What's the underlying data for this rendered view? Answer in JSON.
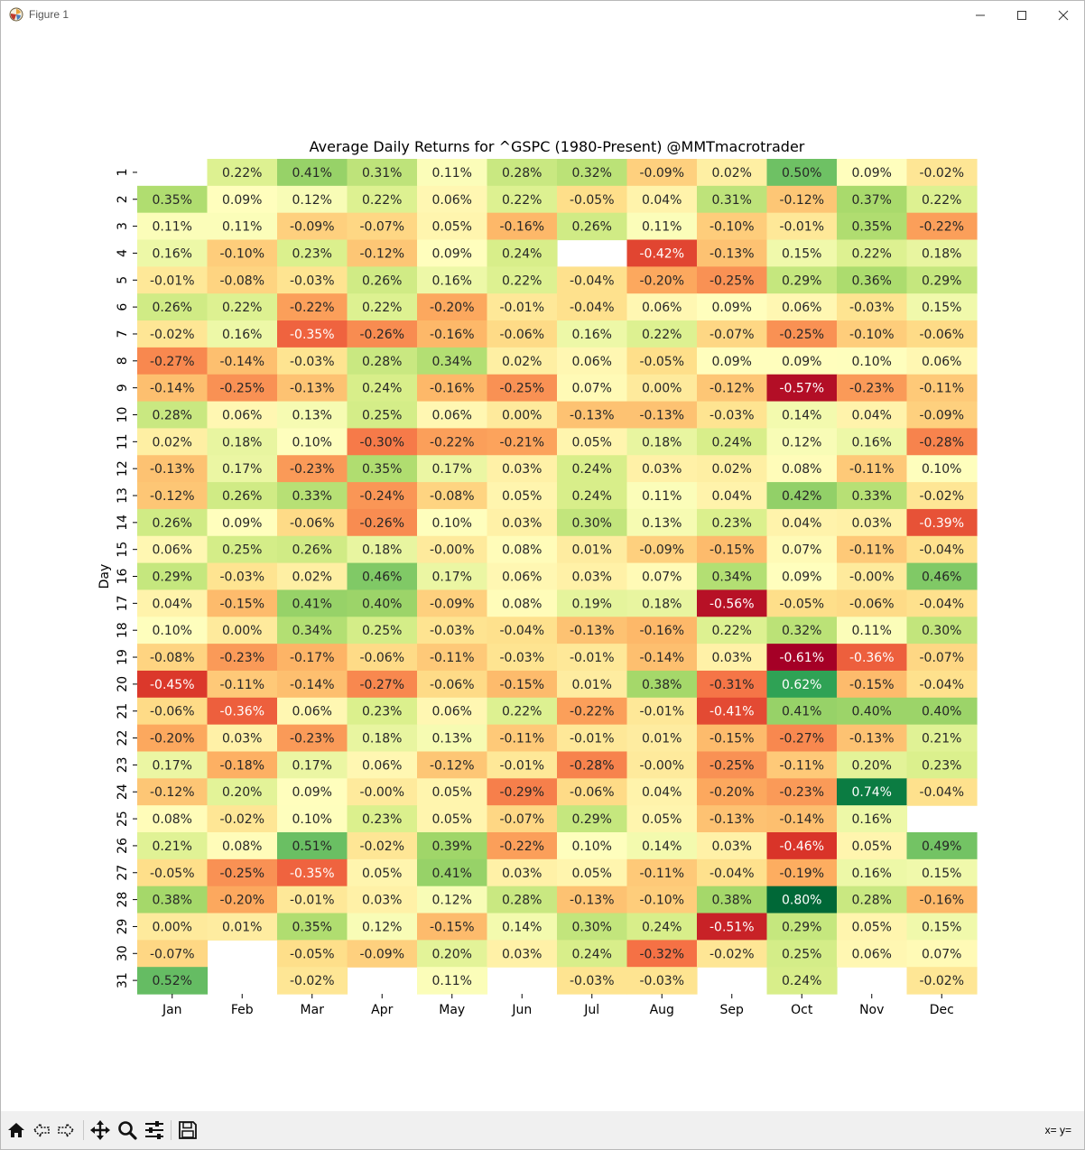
{
  "window": {
    "title": "Figure 1"
  },
  "toolbar": {
    "items": [
      "home-icon",
      "back-icon",
      "forward-icon",
      "pan-icon",
      "zoom-icon",
      "configure-subplots-icon",
      "save-icon"
    ],
    "coords_label": "x= y="
  },
  "chart_data": {
    "type": "heatmap",
    "title": "Average Daily Returns for ^GSPC (1980-Present) @MMTmacrotrader",
    "xlabel": "",
    "ylabel": "Day",
    "colormap": "RdYlGn",
    "vmin": -0.61,
    "vmax": 0.8,
    "colorbar": false,
    "columns": [
      "Jan",
      "Feb",
      "Mar",
      "Apr",
      "May",
      "Jun",
      "Jul",
      "Aug",
      "Sep",
      "Oct",
      "Nov",
      "Dec"
    ],
    "rows": [
      "1",
      "2",
      "3",
      "4",
      "5",
      "6",
      "7",
      "8",
      "9",
      "10",
      "11",
      "12",
      "13",
      "14",
      "15",
      "16",
      "17",
      "18",
      "19",
      "20",
      "21",
      "22",
      "23",
      "24",
      "25",
      "26",
      "27",
      "28",
      "29",
      "30",
      "31"
    ],
    "values": [
      [
        null,
        0.22,
        0.41,
        0.31,
        0.11,
        0.28,
        0.32,
        -0.09,
        0.02,
        0.5,
        0.09,
        -0.02
      ],
      [
        0.35,
        0.09,
        0.12,
        0.22,
        0.06,
        0.22,
        -0.05,
        0.04,
        0.31,
        -0.12,
        0.37,
        0.22
      ],
      [
        0.11,
        0.11,
        -0.09,
        -0.07,
        0.05,
        -0.16,
        0.26,
        0.11,
        -0.1,
        -0.01,
        0.35,
        -0.22
      ],
      [
        0.16,
        -0.1,
        0.23,
        -0.12,
        0.09,
        0.24,
        null,
        -0.42,
        -0.13,
        0.15,
        0.22,
        0.18
      ],
      [
        -0.01,
        -0.08,
        -0.03,
        0.26,
        0.16,
        0.22,
        -0.04,
        -0.2,
        -0.25,
        0.29,
        0.36,
        0.29
      ],
      [
        0.26,
        0.22,
        -0.22,
        0.22,
        -0.2,
        -0.01,
        -0.04,
        0.06,
        0.09,
        0.06,
        -0.03,
        0.15
      ],
      [
        -0.02,
        0.16,
        -0.35,
        -0.26,
        -0.16,
        -0.06,
        0.16,
        0.22,
        -0.07,
        -0.25,
        -0.1,
        -0.06
      ],
      [
        -0.27,
        -0.14,
        -0.03,
        0.28,
        0.34,
        0.02,
        0.06,
        -0.05,
        0.09,
        0.09,
        0.1,
        0.06
      ],
      [
        -0.14,
        -0.25,
        -0.13,
        0.24,
        -0.16,
        -0.25,
        0.07,
        0.0,
        -0.12,
        -0.57,
        -0.23,
        -0.11
      ],
      [
        0.28,
        0.06,
        0.13,
        0.25,
        0.06,
        0.0,
        -0.13,
        -0.13,
        -0.03,
        0.14,
        0.04,
        -0.09
      ],
      [
        0.02,
        0.18,
        0.1,
        -0.3,
        -0.22,
        -0.21,
        0.05,
        0.18,
        0.24,
        0.12,
        0.16,
        -0.28
      ],
      [
        -0.13,
        0.17,
        -0.23,
        0.35,
        0.17,
        0.03,
        0.24,
        0.03,
        0.02,
        0.08,
        -0.11,
        0.1
      ],
      [
        -0.12,
        0.26,
        0.33,
        -0.24,
        -0.08,
        0.05,
        0.24,
        0.11,
        0.04,
        0.42,
        0.33,
        -0.02
      ],
      [
        0.26,
        0.09,
        -0.06,
        -0.26,
        0.1,
        0.03,
        0.3,
        0.13,
        0.23,
        0.04,
        0.03,
        -0.39
      ],
      [
        0.06,
        0.25,
        0.26,
        0.18,
        -0.0,
        0.08,
        0.01,
        -0.09,
        -0.15,
        0.07,
        -0.11,
        -0.04
      ],
      [
        0.29,
        -0.03,
        0.02,
        0.46,
        0.17,
        0.06,
        0.03,
        0.07,
        0.34,
        0.09,
        -0.0,
        0.46
      ],
      [
        0.04,
        -0.15,
        0.41,
        0.4,
        -0.09,
        0.08,
        0.19,
        0.18,
        -0.56,
        -0.05,
        -0.06,
        -0.04
      ],
      [
        0.1,
        0.0,
        0.34,
        0.25,
        -0.03,
        -0.04,
        -0.13,
        -0.16,
        0.22,
        0.32,
        0.11,
        0.3
      ],
      [
        -0.08,
        -0.23,
        -0.17,
        -0.06,
        -0.11,
        -0.03,
        -0.01,
        -0.14,
        0.03,
        -0.61,
        -0.36,
        -0.07
      ],
      [
        -0.45,
        -0.11,
        -0.14,
        -0.27,
        -0.06,
        -0.15,
        0.01,
        0.38,
        -0.31,
        0.62,
        -0.15,
        -0.04
      ],
      [
        -0.06,
        -0.36,
        0.06,
        0.23,
        0.06,
        0.22,
        -0.22,
        -0.01,
        -0.41,
        0.41,
        0.4,
        0.4
      ],
      [
        -0.2,
        0.03,
        -0.23,
        0.18,
        0.13,
        -0.11,
        -0.01,
        0.01,
        -0.15,
        -0.27,
        -0.13,
        0.21
      ],
      [
        0.17,
        -0.18,
        0.17,
        0.06,
        -0.12,
        -0.01,
        -0.28,
        -0.0,
        -0.25,
        -0.11,
        0.2,
        0.23
      ],
      [
        -0.12,
        0.2,
        0.09,
        -0.0,
        0.05,
        -0.29,
        -0.06,
        0.04,
        -0.2,
        -0.23,
        0.74,
        -0.04
      ],
      [
        0.08,
        -0.02,
        0.1,
        0.23,
        0.05,
        -0.07,
        0.29,
        0.05,
        -0.13,
        -0.14,
        0.16,
        null
      ],
      [
        0.21,
        0.08,
        0.51,
        -0.02,
        0.39,
        -0.22,
        0.1,
        0.14,
        0.03,
        -0.46,
        0.05,
        0.49
      ],
      [
        -0.05,
        -0.25,
        -0.35,
        0.05,
        0.41,
        0.03,
        0.05,
        -0.11,
        -0.04,
        -0.19,
        0.16,
        0.15
      ],
      [
        0.38,
        -0.2,
        -0.01,
        0.03,
        0.12,
        0.28,
        -0.13,
        -0.1,
        0.38,
        0.8,
        0.28,
        -0.16
      ],
      [
        0.0,
        0.01,
        0.35,
        0.12,
        -0.15,
        0.14,
        0.3,
        0.24,
        -0.51,
        0.29,
        0.05,
        0.15
      ],
      [
        -0.07,
        null,
        -0.05,
        -0.09,
        0.2,
        0.03,
        0.24,
        -0.32,
        -0.02,
        0.25,
        0.06,
        0.07
      ],
      [
        0.52,
        null,
        -0.02,
        null,
        0.11,
        null,
        -0.03,
        -0.03,
        null,
        0.24,
        null,
        -0.02
      ]
    ],
    "labels": [
      [
        "",
        "0.22%",
        "0.41%",
        "0.31%",
        "0.11%",
        "0.28%",
        "0.32%",
        "-0.09%",
        "0.02%",
        "0.50%",
        "0.09%",
        "-0.02%"
      ],
      [
        "0.35%",
        "0.09%",
        "0.12%",
        "0.22%",
        "0.06%",
        "0.22%",
        "-0.05%",
        "0.04%",
        "0.31%",
        "-0.12%",
        "0.37%",
        "0.22%"
      ],
      [
        "0.11%",
        "0.11%",
        "-0.09%",
        "-0.07%",
        "0.05%",
        "-0.16%",
        "0.26%",
        "0.11%",
        "-0.10%",
        "-0.01%",
        "0.35%",
        "-0.22%"
      ],
      [
        "0.16%",
        "-0.10%",
        "0.23%",
        "-0.12%",
        "0.09%",
        "0.24%",
        "",
        "-0.42%",
        "-0.13%",
        "0.15%",
        "0.22%",
        "0.18%"
      ],
      [
        "-0.01%",
        "-0.08%",
        "-0.03%",
        "0.26%",
        "0.16%",
        "0.22%",
        "-0.04%",
        "-0.20%",
        "-0.25%",
        "0.29%",
        "0.36%",
        "0.29%"
      ],
      [
        "0.26%",
        "0.22%",
        "-0.22%",
        "0.22%",
        "-0.20%",
        "-0.01%",
        "-0.04%",
        "0.06%",
        "0.09%",
        "0.06%",
        "-0.03%",
        "0.15%"
      ],
      [
        "-0.02%",
        "0.16%",
        "-0.35%",
        "-0.26%",
        "-0.16%",
        "-0.06%",
        "0.16%",
        "0.22%",
        "-0.07%",
        "-0.25%",
        "-0.10%",
        "-0.06%"
      ],
      [
        "-0.27%",
        "-0.14%",
        "-0.03%",
        "0.28%",
        "0.34%",
        "0.02%",
        "0.06%",
        "-0.05%",
        "0.09%",
        "0.09%",
        "0.10%",
        "0.06%"
      ],
      [
        "-0.14%",
        "-0.25%",
        "-0.13%",
        "0.24%",
        "-0.16%",
        "-0.25%",
        "0.07%",
        "0.00%",
        "-0.12%",
        "-0.57%",
        "-0.23%",
        "-0.11%"
      ],
      [
        "0.28%",
        "0.06%",
        "0.13%",
        "0.25%",
        "0.06%",
        "0.00%",
        "-0.13%",
        "-0.13%",
        "-0.03%",
        "0.14%",
        "0.04%",
        "-0.09%"
      ],
      [
        "0.02%",
        "0.18%",
        "0.10%",
        "-0.30%",
        "-0.22%",
        "-0.21%",
        "0.05%",
        "0.18%",
        "0.24%",
        "0.12%",
        "0.16%",
        "-0.28%"
      ],
      [
        "-0.13%",
        "0.17%",
        "-0.23%",
        "0.35%",
        "0.17%",
        "0.03%",
        "0.24%",
        "0.03%",
        "0.02%",
        "0.08%",
        "-0.11%",
        "0.10%"
      ],
      [
        "-0.12%",
        "0.26%",
        "0.33%",
        "-0.24%",
        "-0.08%",
        "0.05%",
        "0.24%",
        "0.11%",
        "0.04%",
        "0.42%",
        "0.33%",
        "-0.02%"
      ],
      [
        "0.26%",
        "0.09%",
        "-0.06%",
        "-0.26%",
        "0.10%",
        "0.03%",
        "0.30%",
        "0.13%",
        "0.23%",
        "0.04%",
        "0.03%",
        "-0.39%"
      ],
      [
        "0.06%",
        "0.25%",
        "0.26%",
        "0.18%",
        "-0.00%",
        "0.08%",
        "0.01%",
        "-0.09%",
        "-0.15%",
        "0.07%",
        "-0.11%",
        "-0.04%"
      ],
      [
        "0.29%",
        "-0.03%",
        "0.02%",
        "0.46%",
        "0.17%",
        "0.06%",
        "0.03%",
        "0.07%",
        "0.34%",
        "0.09%",
        "-0.00%",
        "0.46%"
      ],
      [
        "0.04%",
        "-0.15%",
        "0.41%",
        "0.40%",
        "-0.09%",
        "0.08%",
        "0.19%",
        "0.18%",
        "-0.56%",
        "-0.05%",
        "-0.06%",
        "-0.04%"
      ],
      [
        "0.10%",
        "0.00%",
        "0.34%",
        "0.25%",
        "-0.03%",
        "-0.04%",
        "-0.13%",
        "-0.16%",
        "0.22%",
        "0.32%",
        "0.11%",
        "0.30%"
      ],
      [
        "-0.08%",
        "-0.23%",
        "-0.17%",
        "-0.06%",
        "-0.11%",
        "-0.03%",
        "-0.01%",
        "-0.14%",
        "0.03%",
        "-0.61%",
        "-0.36%",
        "-0.07%"
      ],
      [
        "-0.45%",
        "-0.11%",
        "-0.14%",
        "-0.27%",
        "-0.06%",
        "-0.15%",
        "0.01%",
        "0.38%",
        "-0.31%",
        "0.62%",
        "-0.15%",
        "-0.04%"
      ],
      [
        "-0.06%",
        "-0.36%",
        "0.06%",
        "0.23%",
        "0.06%",
        "0.22%",
        "-0.22%",
        "-0.01%",
        "-0.41%",
        "0.41%",
        "0.40%",
        "0.40%"
      ],
      [
        "-0.20%",
        "0.03%",
        "-0.23%",
        "0.18%",
        "0.13%",
        "-0.11%",
        "-0.01%",
        "0.01%",
        "-0.15%",
        "-0.27%",
        "-0.13%",
        "0.21%"
      ],
      [
        "0.17%",
        "-0.18%",
        "0.17%",
        "0.06%",
        "-0.12%",
        "-0.01%",
        "-0.28%",
        "-0.00%",
        "-0.25%",
        "-0.11%",
        "0.20%",
        "0.23%"
      ],
      [
        "-0.12%",
        "0.20%",
        "0.09%",
        "-0.00%",
        "0.05%",
        "-0.29%",
        "-0.06%",
        "0.04%",
        "-0.20%",
        "-0.23%",
        "0.74%",
        "-0.04%"
      ],
      [
        "0.08%",
        "-0.02%",
        "0.10%",
        "0.23%",
        "0.05%",
        "-0.07%",
        "0.29%",
        "0.05%",
        "-0.13%",
        "-0.14%",
        "0.16%",
        ""
      ],
      [
        "0.21%",
        "0.08%",
        "0.51%",
        "-0.02%",
        "0.39%",
        "-0.22%",
        "0.10%",
        "0.14%",
        "0.03%",
        "-0.46%",
        "0.05%",
        "0.49%"
      ],
      [
        "-0.05%",
        "-0.25%",
        "-0.35%",
        "0.05%",
        "0.41%",
        "0.03%",
        "0.05%",
        "-0.11%",
        "-0.04%",
        "-0.19%",
        "0.16%",
        "0.15%"
      ],
      [
        "0.38%",
        "-0.20%",
        "-0.01%",
        "0.03%",
        "0.12%",
        "0.28%",
        "-0.13%",
        "-0.10%",
        "0.38%",
        "0.80%",
        "0.28%",
        "-0.16%"
      ],
      [
        "0.00%",
        "0.01%",
        "0.35%",
        "0.12%",
        "-0.15%",
        "0.14%",
        "0.30%",
        "0.24%",
        "-0.51%",
        "0.29%",
        "0.05%",
        "0.15%"
      ],
      [
        "-0.07%",
        "",
        "-0.05%",
        "-0.09%",
        "0.20%",
        "0.03%",
        "0.24%",
        "-0.32%",
        "-0.02%",
        "0.25%",
        "0.06%",
        "0.07%"
      ],
      [
        "0.52%",
        "",
        "-0.02%",
        "",
        "0.11%",
        "",
        "-0.03%",
        "-0.03%",
        "",
        "0.24%",
        "",
        "-0.02%"
      ]
    ]
  }
}
